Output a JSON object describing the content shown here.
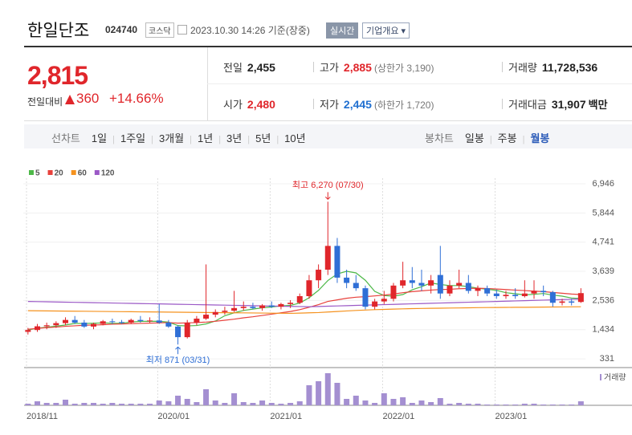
{
  "header": {
    "name": "한일단조",
    "code": "024740",
    "market": "코스닥",
    "timestamp": "2023.10.30 14:26 기준(장중)",
    "realtime": "실시간",
    "company_info": "기업개요"
  },
  "price": {
    "current": "2,815",
    "change_label": "전일대비",
    "change": "360",
    "change_rate": "+14.66%"
  },
  "stats": [
    {
      "label": "전일",
      "value": "2,455"
    },
    {
      "label": "고가",
      "value": "2,885",
      "note": "(상한가 3,190)",
      "color": "#e0262b"
    },
    {
      "label": "거래량",
      "value": "11,728,536"
    },
    {
      "label": "시가",
      "value": "2,480",
      "color": "#e0262b"
    },
    {
      "label": "저가",
      "value": "2,445",
      "note": "(하한가 1,720)",
      "color": "#1f6fd0"
    },
    {
      "label": "거래대금",
      "value": "31,907",
      "unit": "백만"
    }
  ],
  "tabs": {
    "line_label": "선차트",
    "line_periods": [
      "1일",
      "1주일",
      "3개월",
      "1년",
      "3년",
      "5년",
      "10년"
    ],
    "candle_label": "봉차트",
    "candle_periods": [
      "일봉",
      "주봉",
      "월봉"
    ],
    "selected": "월봉"
  },
  "chart_data": {
    "type": "candlestick",
    "categories": [
      "2018/11",
      null,
      null,
      null,
      null,
      null,
      null,
      null,
      null,
      null,
      null,
      null,
      null,
      null,
      "2020/01",
      null,
      null,
      null,
      null,
      null,
      null,
      null,
      null,
      null,
      null,
      null,
      "2021/01",
      null,
      null,
      null,
      null,
      null,
      null,
      null,
      null,
      null,
      null,
      null,
      "2022/01",
      null,
      null,
      null,
      null,
      null,
      null,
      null,
      null,
      null,
      null,
      null,
      "2023/01",
      null,
      null,
      null,
      null,
      null,
      null,
      null,
      null,
      null
    ],
    "ohlc": {
      "open": [
        1350,
        1420,
        1560,
        1600,
        1680,
        1800,
        1700,
        1550,
        1650,
        1750,
        1720,
        1700,
        1800,
        1760,
        1780,
        1700,
        1550,
        1150,
        1700,
        1850,
        2000,
        2100,
        2150,
        2250,
        2300,
        2250,
        2350,
        2300,
        2400,
        2450,
        2700,
        3300,
        3700,
        4600,
        3400,
        3200,
        3000,
        2300,
        2500,
        2600,
        3100,
        3300,
        3200,
        3100,
        3500,
        2800,
        3100,
        3200,
        2900,
        3000,
        2800,
        2700,
        2750,
        2700,
        2800,
        2900,
        2850,
        2450,
        2500,
        2480
      ],
      "high": [
        1500,
        1650,
        1700,
        1750,
        1900,
        1950,
        1800,
        1700,
        1800,
        1850,
        1800,
        1850,
        1950,
        1900,
        2400,
        1800,
        1600,
        1800,
        1950,
        3900,
        2200,
        2300,
        2900,
        2500,
        2450,
        2400,
        2500,
        2450,
        2550,
        2800,
        3500,
        3900,
        6270,
        4900,
        3700,
        3500,
        3100,
        2600,
        2900,
        3200,
        4000,
        3800,
        3700,
        3500,
        4600,
        3300,
        3700,
        3500,
        3100,
        3100,
        2950,
        2900,
        3000,
        3300,
        3300,
        3100,
        2900,
        2600,
        2600,
        3000
      ],
      "low": [
        1250,
        1350,
        1450,
        1500,
        1600,
        1650,
        1500,
        1450,
        1600,
        1650,
        1650,
        1650,
        1700,
        1700,
        1650,
        1500,
        871,
        1100,
        1600,
        1800,
        1900,
        2000,
        2100,
        2150,
        2200,
        2150,
        2250,
        2200,
        2250,
        2400,
        2600,
        3000,
        3500,
        3200,
        3000,
        2900,
        2200,
        2200,
        2400,
        2500,
        3000,
        3000,
        2900,
        2800,
        2600,
        2700,
        3000,
        2800,
        2700,
        2700,
        2600,
        2600,
        2600,
        2650,
        2600,
        2700,
        2300,
        2350,
        2350,
        2445
      ],
      "close": [
        1420,
        1560,
        1600,
        1680,
        1800,
        1700,
        1550,
        1650,
        1750,
        1720,
        1700,
        1800,
        1760,
        1780,
        1700,
        1550,
        1150,
        1700,
        1850,
        2000,
        2100,
        2150,
        2250,
        2300,
        2250,
        2350,
        2300,
        2400,
        2450,
        2700,
        3300,
        3700,
        4600,
        3400,
        3200,
        3000,
        2300,
        2500,
        2600,
        3100,
        3300,
        3200,
        3100,
        3300,
        2800,
        3100,
        3200,
        2900,
        3000,
        2800,
        2700,
        2750,
        2700,
        2800,
        2900,
        2850,
        2450,
        2500,
        2455,
        2815
      ]
    },
    "up_color": "#e0262b",
    "down_color": "#2f6fd6",
    "moving_averages": [
      {
        "name": "5",
        "color": "#4db848",
        "values": [
          1420,
          1490,
          1527,
          1565,
          1612,
          1668,
          1666,
          1676,
          1690,
          1674,
          1674,
          1724,
          1746,
          1752,
          1748,
          1718,
          1588,
          1576,
          1590,
          1650,
          1760,
          1960,
          2070,
          2160,
          2210,
          2260,
          2290,
          2330,
          2350,
          2440,
          2640,
          2920,
          3290,
          3540,
          3640,
          3580,
          3300,
          2880,
          2720,
          2700,
          2760,
          2940,
          3060,
          3200,
          3140,
          3100,
          3100,
          3060,
          3000,
          2960,
          2920,
          2830,
          2790,
          2750,
          2770,
          2800,
          2740,
          2700,
          2630,
          2610
        ]
      },
      {
        "name": "20",
        "color": "#e8413c",
        "values": [
          1450,
          1480,
          1510,
          1530,
          1560,
          1580,
          1600,
          1610,
          1620,
          1640,
          1650,
          1660,
          1670,
          1680,
          1690,
          1700,
          1680,
          1690,
          1700,
          1720,
          1750,
          1790,
          1830,
          1880,
          1920,
          1970,
          2020,
          2070,
          2120,
          2190,
          2280,
          2380,
          2500,
          2560,
          2620,
          2660,
          2680,
          2710,
          2740,
          2780,
          2830,
          2870,
          2900,
          2930,
          2950,
          2960,
          2980,
          2990,
          3000,
          2990,
          2970,
          2950,
          2930,
          2910,
          2890,
          2870,
          2840,
          2810,
          2780,
          2760
        ]
      },
      {
        "name": "60",
        "color": "#f5921e",
        "values": [
          2150,
          2146,
          2143,
          2139,
          2136,
          2132,
          2129,
          2125,
          2121,
          2118,
          2114,
          2111,
          2107,
          2104,
          2100,
          2096,
          2093,
          2089,
          2086,
          2082,
          2079,
          2075,
          2071,
          2068,
          2064,
          2061,
          2057,
          2054,
          2050,
          2060,
          2070,
          2080,
          2100,
          2120,
          2140,
          2160,
          2175,
          2190,
          2200,
          2210,
          2220,
          2230,
          2235,
          2240,
          2245,
          2250,
          2255,
          2260,
          2265,
          2270,
          2272,
          2275,
          2278,
          2280,
          2283,
          2286,
          2290,
          2293,
          2296,
          2300
        ]
      },
      {
        "name": "120",
        "color": "#9b59c6",
        "values": [
          2500,
          2493,
          2487,
          2480,
          2473,
          2467,
          2460,
          2453,
          2447,
          2440,
          2433,
          2427,
          2420,
          2413,
          2407,
          2400,
          2393,
          2387,
          2380,
          2373,
          2367,
          2360,
          2353,
          2347,
          2340,
          2333,
          2327,
          2320,
          2313,
          2307,
          2300,
          2310,
          2320,
          2330,
          2340,
          2350,
          2360,
          2370,
          2380,
          2390,
          2400,
          2410,
          2420,
          2430,
          2440,
          2450,
          2460,
          2470,
          2480,
          2490,
          2500,
          2510,
          2520,
          2530,
          2540,
          2550,
          2560,
          2570,
          2580,
          2590
        ]
      }
    ],
    "volume": {
      "name": "거래량",
      "color": "#a48fd1",
      "values": [
        2,
        5,
        3,
        3,
        7,
        2,
        3,
        3,
        2,
        3,
        2,
        2,
        2,
        2,
        6,
        5,
        12,
        8,
        4,
        20,
        6,
        3,
        15,
        4,
        3,
        6,
        3,
        2,
        3,
        5,
        25,
        30,
        40,
        28,
        8,
        12,
        6,
        3,
        15,
        8,
        10,
        3,
        6,
        4,
        9,
        2,
        3,
        2,
        2,
        1,
        1,
        1,
        1,
        2,
        2,
        1,
        1,
        1,
        1,
        5
      ],
      "ylim": [
        0,
        42
      ]
    },
    "annotations": [
      "최고 6,270 (07/30)",
      "최저 871 (03/31)"
    ],
    "ylim": [
      30,
      7160
    ],
    "yticks": [
      {
        "value": 6946,
        "label": "6,946"
      },
      {
        "value": 5844,
        "label": "5,844"
      },
      {
        "value": 4741,
        "label": "4,741"
      },
      {
        "value": 3639,
        "label": "3,639"
      },
      {
        "value": 2536,
        "label": "2,536"
      },
      {
        "value": 1434,
        "label": "1,434"
      },
      331
    ],
    "grid": true
  }
}
